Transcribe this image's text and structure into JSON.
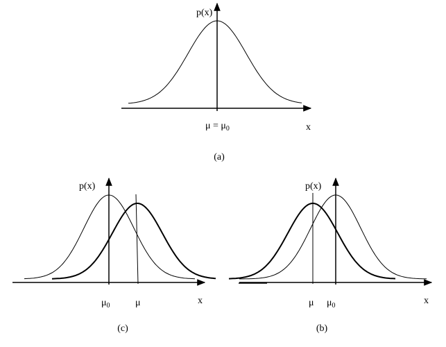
{
  "panels": [
    {
      "caption": "(a)",
      "y_label": "p(x)",
      "x_label": "x",
      "mean_label": {
        "main": "μ = μ",
        "sub": "0"
      }
    },
    {
      "caption": "(c)",
      "y_label": "p(x)",
      "x_label": "x",
      "mu0_label": {
        "main": "μ",
        "sub": "0"
      },
      "mu_label": "μ"
    },
    {
      "caption": "(b)",
      "y_label": "p(x)",
      "x_label": "x",
      "mu0_label": {
        "main": "μ",
        "sub": "0"
      },
      "mu_label": "μ"
    }
  ]
}
